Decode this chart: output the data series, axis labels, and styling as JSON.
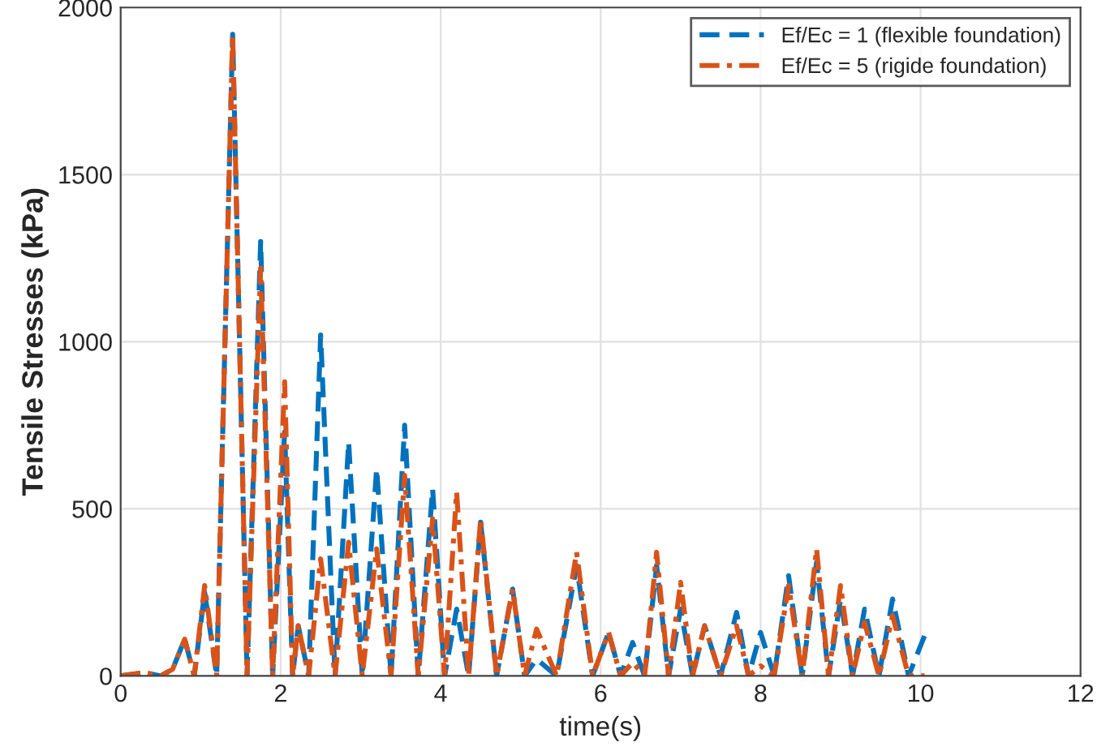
{
  "chart_data": {
    "type": "line",
    "xlabel": "time(s)",
    "ylabel": "Tensile Stresses (kPa)",
    "x": [
      0,
      0.3,
      0.5,
      0.65,
      0.8,
      0.92,
      1.05,
      1.2,
      1.4,
      1.58,
      1.75,
      1.9,
      2.05,
      2.15,
      2.22,
      2.35,
      2.5,
      2.68,
      2.85,
      3.02,
      3.2,
      3.38,
      3.55,
      3.72,
      3.9,
      4.05,
      4.2,
      4.35,
      4.5,
      4.7,
      4.9,
      5.05,
      5.2,
      5.45,
      5.7,
      5.9,
      6.1,
      6.25,
      6.4,
      6.55,
      6.7,
      6.85,
      7.0,
      7.15,
      7.3,
      7.5,
      7.7,
      7.85,
      8.0,
      8.17,
      8.35,
      8.52,
      8.7,
      8.85,
      9.0,
      9.15,
      9.3,
      9.48,
      9.65,
      9.85,
      10.05
    ],
    "series": [
      {
        "name": "Ef/Ec = 1 (flexible foundation)",
        "color": "#0072bd",
        "line_style": "dashed",
        "values": [
          0,
          10,
          0,
          20,
          110,
          0,
          250,
          0,
          1920,
          0,
          1300,
          0,
          730,
          0,
          150,
          0,
          1020,
          0,
          700,
          0,
          620,
          0,
          750,
          0,
          560,
          0,
          200,
          0,
          460,
          0,
          260,
          0,
          50,
          0,
          330,
          0,
          130,
          0,
          100,
          0,
          330,
          0,
          200,
          0,
          150,
          0,
          190,
          0,
          130,
          0,
          300,
          0,
          340,
          0,
          230,
          0,
          200,
          0,
          230,
          0,
          120
        ]
      },
      {
        "name": "Ef/Ec = 5 (rigide foundation)",
        "color": "#d95319",
        "line_style": "dashdot",
        "values": [
          0,
          10,
          0,
          20,
          110,
          0,
          270,
          0,
          1920,
          0,
          1220,
          0,
          880,
          0,
          150,
          0,
          350,
          0,
          400,
          0,
          380,
          0,
          600,
          0,
          470,
          0,
          550,
          0,
          470,
          0,
          260,
          0,
          140,
          0,
          370,
          0,
          130,
          0,
          40,
          0,
          370,
          0,
          280,
          0,
          150,
          0,
          150,
          0,
          30,
          0,
          270,
          0,
          380,
          0,
          270,
          0,
          160,
          0,
          180,
          0,
          0
        ]
      }
    ],
    "xlim": [
      0,
      12
    ],
    "xticks": [
      0,
      2,
      4,
      6,
      8,
      10,
      12
    ],
    "ylim": [
      0,
      2000
    ],
    "yticks": [
      0,
      500,
      1000,
      1500,
      2000
    ],
    "grid": true,
    "legend": "top right"
  }
}
